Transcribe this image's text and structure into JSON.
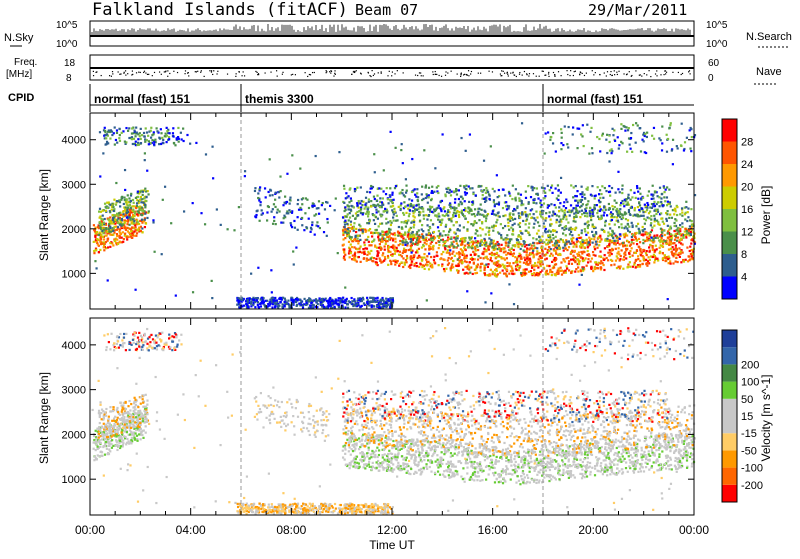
{
  "header": {
    "title": "Falkland Islands (fitACF)",
    "beam": "Beam 07",
    "date": "29/Mar/2011"
  },
  "strip_labels": {
    "nsky": "N.Sky",
    "nsky_ticks": [
      "10^5",
      "10^0"
    ],
    "nsky_ticks_right": [
      "10^5",
      "10^0"
    ],
    "nsearch": "N.Search",
    "freq": "Freq.",
    "freq_unit": "[MHz]",
    "freq_ticks": [
      "18",
      "8"
    ],
    "nave_ticks": [
      "60",
      "0"
    ],
    "nave": "Nave",
    "cpid": "CPID"
  },
  "cpid_segments": [
    {
      "label": "normal (fast) 151",
      "start_hour": 0,
      "end_hour": 6
    },
    {
      "label": "themis 3300",
      "start_hour": 6,
      "end_hour": 18
    },
    {
      "label": "normal (fast) 151",
      "start_hour": 18,
      "end_hour": 24
    }
  ],
  "colors": {
    "power_scale": [
      "#0000ff",
      "#2e5e8e",
      "#4a8f4a",
      "#7fbf3f",
      "#cccc00",
      "#ff9900",
      "#ff5500",
      "#ff0000"
    ],
    "velocity_scale": [
      "#ff0000",
      "#ff6600",
      "#ff9900",
      "#ffcc66",
      "#c8c8c8",
      "#c8c8c8",
      "#66cc33",
      "#448844",
      "#3366aa",
      "#1f3f99"
    ]
  },
  "chart_data": [
    {
      "type": "heatmap",
      "name": "power",
      "xlabel": "",
      "ylabel": "Slant Range [km]",
      "y_ticks": [
        1000,
        2000,
        3000,
        4000
      ],
      "ylim": [
        200,
        4600
      ],
      "colorbar_label": "Power [dB]",
      "colorbar_ticks": [
        4,
        8,
        12,
        16,
        20,
        24,
        28
      ],
      "colorbar_range": [
        0,
        32
      ]
    },
    {
      "type": "heatmap",
      "name": "velocity",
      "xlabel": "Time UT",
      "ylabel": "Slant Range [km]",
      "y_ticks": [
        1000,
        2000,
        3000,
        4000
      ],
      "ylim": [
        200,
        4600
      ],
      "colorbar_label": "Velocity [m s^-1]",
      "colorbar_ticks": [
        -200,
        -100,
        -50,
        -15,
        15,
        50,
        100,
        200
      ],
      "x_ticks": [
        "00:00",
        "04:00",
        "08:00",
        "12:00",
        "16:00",
        "20:00",
        "00:00"
      ],
      "xlim_hours": [
        0,
        24
      ]
    }
  ]
}
